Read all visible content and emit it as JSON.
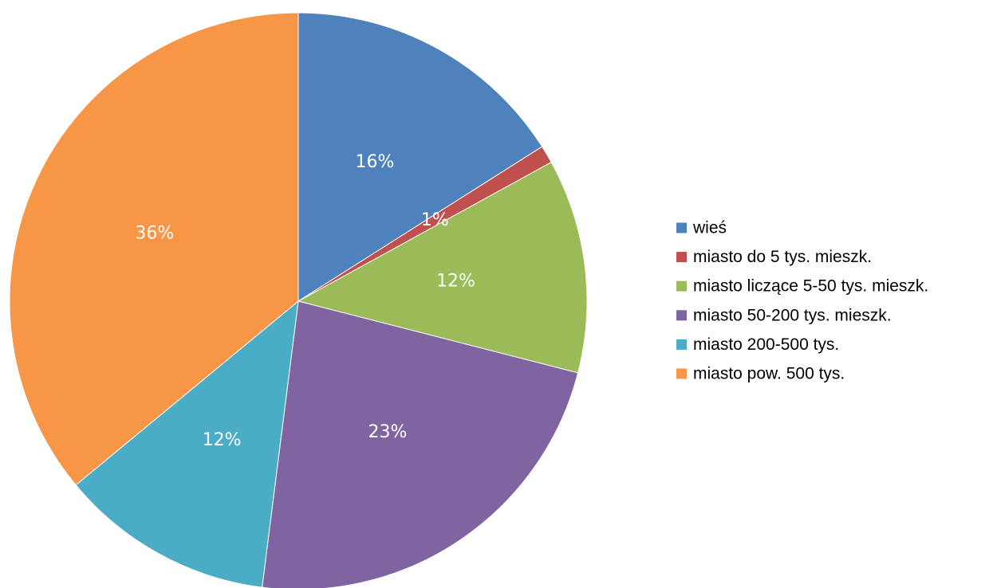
{
  "chart_data": {
    "type": "pie",
    "slices": [
      {
        "name": "wieś",
        "value": 16,
        "label": "16%",
        "color": "#4F81BD"
      },
      {
        "name": "miasto do 5 tys. mieszk.",
        "value": 1,
        "label": "1%",
        "color": "#C0504D"
      },
      {
        "name": "miasto liczące 5-50 tys. mieszk.",
        "value": 12,
        "label": "12%",
        "color": "#9BBB59"
      },
      {
        "name": "miasto 50-200 tys. mieszk.",
        "value": 23,
        "label": "23%",
        "color": "#8064A2"
      },
      {
        "name": "miasto 200-500 tys.",
        "value": 12,
        "label": "12%",
        "color": "#4BACC6"
      },
      {
        "name": "miasto pow. 500 tys.",
        "value": 36,
        "label": "36%",
        "color": "#F79646"
      }
    ],
    "legend_position": "right",
    "start_angle": "12 o'clock",
    "direction": "clockwise"
  }
}
